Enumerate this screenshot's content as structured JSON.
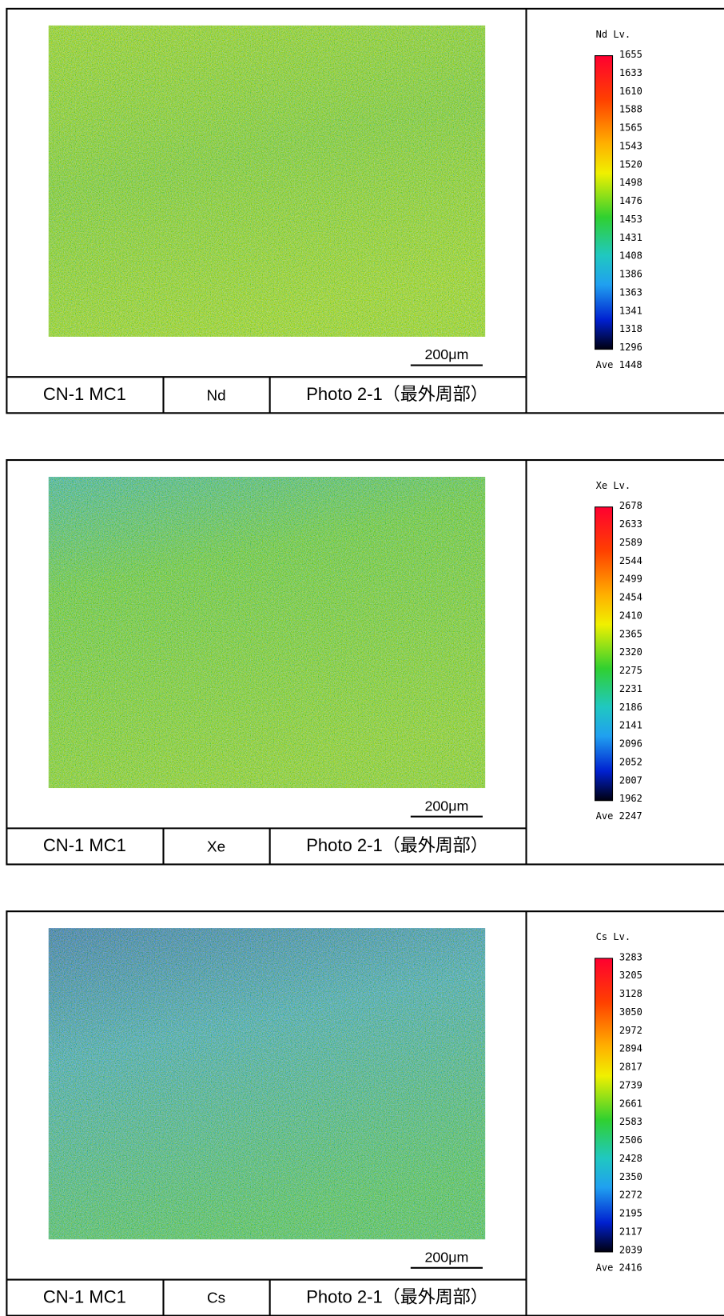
{
  "panels": [
    {
      "sample": "CN-1 MC1",
      "element": "Nd",
      "photo": "Photo 2-1（最外周部）",
      "scale_bar": "200μm",
      "legend": {
        "title": "Nd Lv.",
        "levels": [
          1655,
          1633,
          1610,
          1588,
          1565,
          1543,
          1520,
          1498,
          1476,
          1453,
          1431,
          1408,
          1386,
          1363,
          1341,
          1318,
          1296
        ],
        "average": "Ave 1448"
      }
    },
    {
      "sample": "CN-1 MC1",
      "element": "Xe",
      "photo": "Photo 2-1（最外周部）",
      "scale_bar": "200μm",
      "legend": {
        "title": "Xe Lv.",
        "levels": [
          2678,
          2633,
          2589,
          2544,
          2499,
          2454,
          2410,
          2365,
          2320,
          2275,
          2231,
          2186,
          2141,
          2096,
          2052,
          2007,
          1962
        ],
        "average": "Ave 2247"
      }
    },
    {
      "sample": "CN-1 MC1",
      "element": "Cs",
      "photo": "Photo 2-1（最外周部）",
      "scale_bar": "200μm",
      "legend": {
        "title": "Cs Lv.",
        "levels": [
          3283,
          3205,
          3128,
          3050,
          2972,
          2894,
          2817,
          2739,
          2661,
          2583,
          2506,
          2428,
          2350,
          2272,
          2195,
          2117,
          2039
        ],
        "average": "Ave 2416"
      }
    }
  ]
}
